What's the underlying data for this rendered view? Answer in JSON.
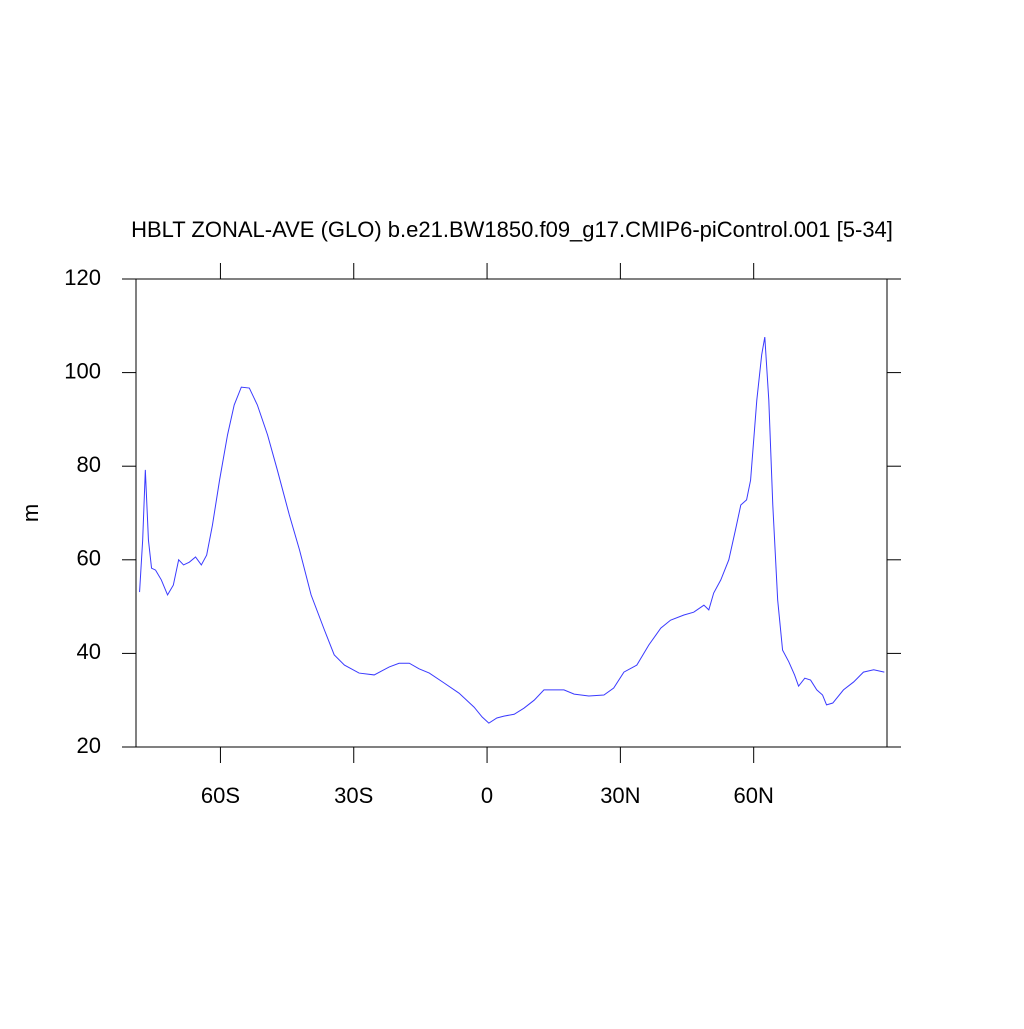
{
  "chart_data": {
    "type": "line",
    "title": "HBLT ZONAL-AVE (GLO) b.e21.BW1850.f09_g17.CMIP6-piControl.001 [5-34]",
    "y_label": "m",
    "x": [
      -78.2,
      -77.5,
      -76.9,
      -76.2,
      -75.5,
      -74.6,
      -73.3,
      -71.9,
      -70.6,
      -69.4,
      -68.3,
      -67,
      -65.6,
      -64.3,
      -63.1,
      -61.8,
      -60.2,
      -58.4,
      -56.9,
      -55.3,
      -53.5,
      -51.7,
      -49.4,
      -47.2,
      -44.5,
      -42.2,
      -39.6,
      -36.6,
      -34.4,
      -32.1,
      -28.8,
      -25.4,
      -22,
      -19.8,
      -17.5,
      -15.3,
      -13,
      -9.7,
      -6.3,
      -2.9,
      -1.1,
      0.4,
      2.2,
      3.8,
      6.1,
      8.3,
      10.6,
      12.8,
      15.1,
      17.3,
      19.6,
      22.9,
      26.3,
      28.5,
      30.8,
      33.7,
      36.4,
      39.1,
      41.3,
      44.3,
      46.5,
      48.8,
      49.9,
      51,
      52.6,
      54.4,
      55.9,
      57.1,
      58.4,
      59.3,
      60.7,
      61.8,
      62.5,
      63.4,
      64.3,
      65.4,
      66.5,
      67.9,
      69.2,
      70.1,
      71.5,
      72.8,
      74.2,
      75.5,
      76.4,
      77.8,
      80.2,
      82.5,
      84.7,
      87,
      89.4
    ],
    "series": [
      {
        "name": "HBLT",
        "color": "#3a3aff",
        "values": [
          53.1,
          64.2,
          79.2,
          64.2,
          58.2,
          57.8,
          55.7,
          52.5,
          54.6,
          60,
          58.9,
          59.5,
          60.6,
          58.9,
          61,
          67.4,
          77,
          86.7,
          93.1,
          96.9,
          96.7,
          93.1,
          86.7,
          79.2,
          69.6,
          62.1,
          52.5,
          45,
          39.7,
          37.5,
          35.8,
          35.4,
          37.1,
          37.9,
          37.9,
          36.7,
          35.8,
          33.7,
          31.5,
          28.5,
          26.4,
          25.1,
          26.2,
          26.6,
          27,
          28.3,
          30,
          32.2,
          32.2,
          32.2,
          31.3,
          30.9,
          31.1,
          32.6,
          36,
          37.5,
          41.8,
          45.4,
          47.1,
          48.2,
          48.8,
          50.3,
          49.3,
          52.9,
          55.7,
          60,
          66.4,
          71.7,
          72.8,
          77,
          94.1,
          103.8,
          107.6,
          94.1,
          71.7,
          51.4,
          40.7,
          38.2,
          35.4,
          33,
          34.7,
          34.3,
          32.2,
          31.1,
          29,
          29.4,
          32.2,
          33.9,
          36,
          36.5,
          36
        ]
      }
    ],
    "xlim": [
      -79,
      90
    ],
    "xticks": [
      {
        "value": -60,
        "label": "60S"
      },
      {
        "value": -30,
        "label": "30S"
      },
      0,
      {
        "value": 30,
        "label": "30N"
      },
      {
        "value": 60,
        "label": "60N"
      }
    ],
    "ylim": [
      20,
      120
    ],
    "yticks": [
      20,
      40,
      60,
      80,
      100,
      120
    ]
  }
}
